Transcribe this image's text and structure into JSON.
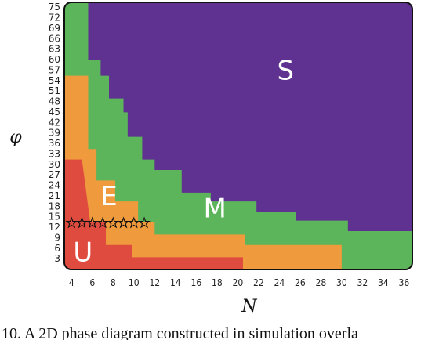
{
  "chart_data": {
    "type": "heatmap",
    "title": "",
    "xlabel": "N",
    "ylabel": "φ",
    "x_ticks": [
      4,
      6,
      8,
      10,
      12,
      14,
      16,
      18,
      20,
      22,
      24,
      26,
      28,
      30,
      32,
      34,
      36
    ],
    "y_ticks": [
      3,
      6,
      9,
      12,
      15,
      18,
      21,
      24,
      27,
      30,
      33,
      36,
      39,
      42,
      45,
      48,
      51,
      54,
      57,
      60,
      63,
      66,
      69,
      72,
      75
    ],
    "xlim": [
      3.3,
      36.8
    ],
    "ylim": [
      0,
      76.5
    ],
    "regions": [
      {
        "label": "S",
        "color": "#5f3191"
      },
      {
        "label": "M",
        "color": "#5db55b"
      },
      {
        "label": "E",
        "color": "#ef9a3c"
      },
      {
        "label": "U",
        "color": "#df4c3f"
      }
    ],
    "boundaries": {
      "U_upper": [
        [
          4,
          31.5
        ],
        [
          5,
          31.5
        ],
        [
          5.8,
          13.5
        ],
        [
          7.3,
          13.5
        ],
        [
          7.3,
          7
        ],
        [
          9.8,
          7
        ],
        [
          9.8,
          3.5
        ],
        [
          20.5,
          3.5
        ],
        [
          20.5,
          0
        ]
      ],
      "E_upper": [
        [
          4,
          55.5
        ],
        [
          5.6,
          55.5
        ],
        [
          5.6,
          34.5
        ],
        [
          6.4,
          34.5
        ],
        [
          6.4,
          25.5
        ],
        [
          8.2,
          25.5
        ],
        [
          8.2,
          19.5
        ],
        [
          10.4,
          19.5
        ],
        [
          10.4,
          13.5
        ],
        [
          12,
          13.5
        ],
        [
          12,
          10
        ],
        [
          20.7,
          10
        ],
        [
          20.7,
          7
        ],
        [
          30,
          7
        ],
        [
          30,
          0
        ]
      ],
      "M_upper": [
        [
          4,
          76.5
        ],
        [
          5.6,
          76.5
        ],
        [
          5.6,
          60
        ],
        [
          6.8,
          60
        ],
        [
          6.8,
          55.5
        ],
        [
          7.6,
          55.5
        ],
        [
          7.6,
          49
        ],
        [
          9,
          49
        ],
        [
          9,
          45
        ],
        [
          9.4,
          45
        ],
        [
          9.4,
          38
        ],
        [
          10.8,
          38
        ],
        [
          10.8,
          31.5
        ],
        [
          12,
          31.5
        ],
        [
          12,
          28.5
        ],
        [
          14.6,
          28.5
        ],
        [
          14.6,
          22
        ],
        [
          17.4,
          22
        ],
        [
          17.4,
          19.5
        ],
        [
          21.8,
          19.5
        ],
        [
          21.8,
          16.5
        ],
        [
          25.6,
          16.5
        ],
        [
          25.6,
          14
        ],
        [
          30.6,
          14
        ],
        [
          30.6,
          11
        ],
        [
          36.8,
          11
        ]
      ]
    },
    "annotations": [
      {
        "text": "S",
        "x": 24.6,
        "y": 56.5
      },
      {
        "text": "M",
        "x": 17.8,
        "y": 17
      },
      {
        "text": "E",
        "x": 7.6,
        "y": 20.5
      },
      {
        "text": "U",
        "x": 5.1,
        "y": 4.5
      }
    ],
    "stars": {
      "y": 13.3,
      "x": [
        4,
        5,
        6,
        7,
        8,
        9,
        10,
        11
      ]
    },
    "legend": "none",
    "grid": false
  },
  "caption": "10.    A 2D phase diagram constructed in simulation overla"
}
